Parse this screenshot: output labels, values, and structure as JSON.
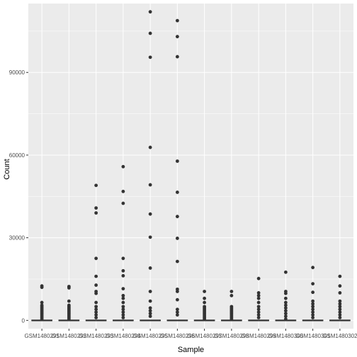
{
  "chart_data": {
    "type": "boxplot",
    "xlabel": "Sample",
    "ylabel": "Count",
    "categories": [
      "GSM1480291",
      "GSM1480292",
      "GSM1480293",
      "GSM1480294",
      "GSM1480295",
      "GSM1480296",
      "GSM1480297",
      "GSM1480298",
      "GSM1480299",
      "GSM1480300",
      "GSM1480301",
      "GSM1480302"
    ],
    "ylim": [
      -3000,
      115000
    ],
    "y_ticks": [
      0,
      30000,
      60000,
      90000
    ],
    "y_tick_labels": [
      "0",
      "30000",
      "60000",
      "90000"
    ],
    "grid": true,
    "panel_color": "#ebebeb",
    "grid_color": "#ffffff",
    "point_color": "#333333",
    "boxes": [
      {
        "median": 0,
        "q1": 0,
        "q3": 0,
        "whisker_low": 0,
        "whisker_high": 0
      },
      {
        "median": 0,
        "q1": 0,
        "q3": 0,
        "whisker_low": 0,
        "whisker_high": 0
      },
      {
        "median": 0,
        "q1": 0,
        "q3": 0,
        "whisker_low": 0,
        "whisker_high": 0
      },
      {
        "median": 0,
        "q1": 0,
        "q3": 0,
        "whisker_low": 0,
        "whisker_high": 0
      },
      {
        "median": 0,
        "q1": 0,
        "q3": 0,
        "whisker_low": 0,
        "whisker_high": 0
      },
      {
        "median": 0,
        "q1": 0,
        "q3": 0,
        "whisker_low": 0,
        "whisker_high": 0
      },
      {
        "median": 0,
        "q1": 0,
        "q3": 0,
        "whisker_low": 0,
        "whisker_high": 0
      },
      {
        "median": 0,
        "q1": 0,
        "q3": 0,
        "whisker_low": 0,
        "whisker_high": 0
      },
      {
        "median": 0,
        "q1": 0,
        "q3": 0,
        "whisker_low": 0,
        "whisker_high": 0
      },
      {
        "median": 0,
        "q1": 0,
        "q3": 0,
        "whisker_low": 0,
        "whisker_high": 0
      },
      {
        "median": 0,
        "q1": 0,
        "q3": 0,
        "whisker_low": 0,
        "whisker_high": 0
      },
      {
        "median": 0,
        "q1": 0,
        "q3": 0,
        "whisker_low": 0,
        "whisker_high": 0
      }
    ],
    "outliers": [
      [
        12500,
        12000,
        6500,
        5500,
        5000,
        4500,
        4000,
        3500,
        3000,
        2500,
        2000,
        1500,
        1000,
        500
      ],
      [
        12300,
        11800,
        7000,
        5500,
        5000,
        4500,
        4000,
        3500,
        3000,
        2500,
        2000,
        1500,
        1000,
        500
      ],
      [
        49000,
        40800,
        39000,
        22500,
        16000,
        12800,
        10500,
        9800,
        6500,
        5000,
        4000,
        3000,
        2000,
        1000
      ],
      [
        55800,
        46800,
        42500,
        22500,
        18000,
        16200,
        11500,
        9000,
        8000,
        6500,
        5000,
        4000,
        3000,
        2000,
        1000
      ],
      [
        112000,
        104200,
        95500,
        62800,
        49200,
        38600,
        30200,
        19000,
        10500,
        7000,
        4500,
        3500,
        2500,
        1500
      ],
      [
        108800,
        103000,
        95700,
        57800,
        46500,
        37700,
        29800,
        21400,
        11300,
        10500,
        7500,
        4000,
        3000,
        2000
      ],
      [
        10500,
        8000,
        6500,
        5000,
        4500,
        4000,
        3500,
        3000,
        2500,
        2000,
        1500,
        1000,
        500
      ],
      [
        10500,
        9000,
        5000,
        4500,
        4000,
        3500,
        3000,
        2500,
        2000,
        1500,
        1000,
        500
      ],
      [
        15200,
        10000,
        9000,
        8000,
        6500,
        5000,
        4000,
        3000,
        2000,
        1000
      ],
      [
        17500,
        10500,
        9800,
        8000,
        6500,
        5500,
        4500,
        3500,
        2500,
        1500,
        500
      ],
      [
        19200,
        13300,
        10200,
        7000,
        6000,
        5000,
        4000,
        3000,
        2000,
        1000
      ],
      [
        16000,
        12500,
        10000,
        7000,
        6000,
        5000,
        4000,
        3000,
        2000,
        1000
      ]
    ]
  }
}
